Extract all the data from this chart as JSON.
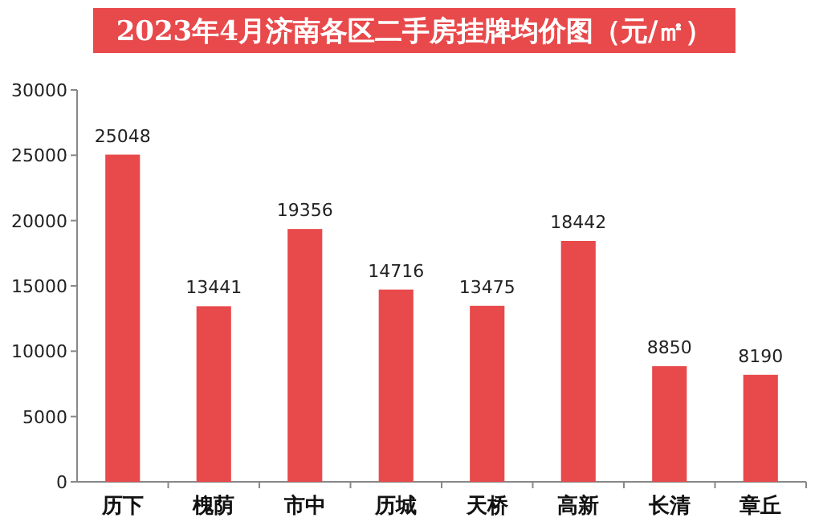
{
  "chart_data": {
    "type": "bar",
    "title": "2023年4月济南各区二手房挂牌均价图（元/㎡）",
    "categories": [
      "历下",
      "槐荫",
      "市中",
      "历城",
      "天桥",
      "高新",
      "长清",
      "章丘"
    ],
    "values": [
      25048,
      13441,
      19356,
      14716,
      13475,
      18442,
      8850,
      8190
    ],
    "color": "#e8494b",
    "ylim": [
      0,
      30000
    ],
    "yticks": [
      0,
      5000,
      10000,
      15000,
      20000,
      25000,
      30000
    ],
    "data_labels": true
  }
}
